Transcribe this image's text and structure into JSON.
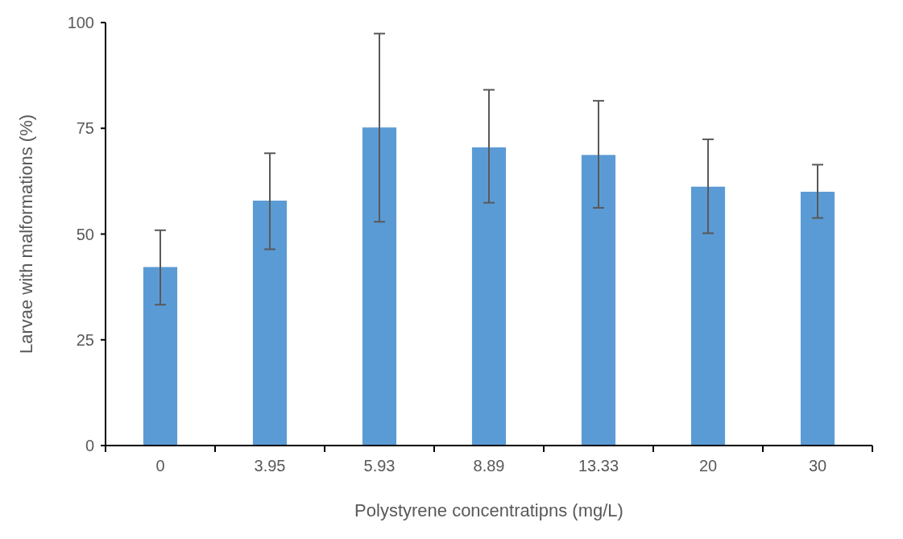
{
  "chart_data": {
    "type": "bar",
    "xlabel": "Polystyrene concentratipns (mg/L)",
    "ylabel": "Larvae with malformations (%)",
    "categories": [
      "0",
      "3.95",
      "5.93",
      "8.89",
      "13.33",
      "20",
      "30"
    ],
    "values": [
      42.2,
      57.9,
      75.2,
      70.5,
      68.7,
      61.2,
      60.0
    ],
    "errors": [
      [
        33.3,
        50.9
      ],
      [
        46.4,
        69.1
      ],
      [
        52.9,
        97.4
      ],
      [
        57.4,
        84.1
      ],
      [
        56.2,
        81.5
      ],
      [
        50.2,
        72.4
      ],
      [
        53.8,
        66.4
      ]
    ],
    "color": "#5b9bd5",
    "ylim": [
      0,
      100
    ],
    "yticks": [
      0,
      25,
      50,
      75,
      100
    ],
    "grid": false
  }
}
